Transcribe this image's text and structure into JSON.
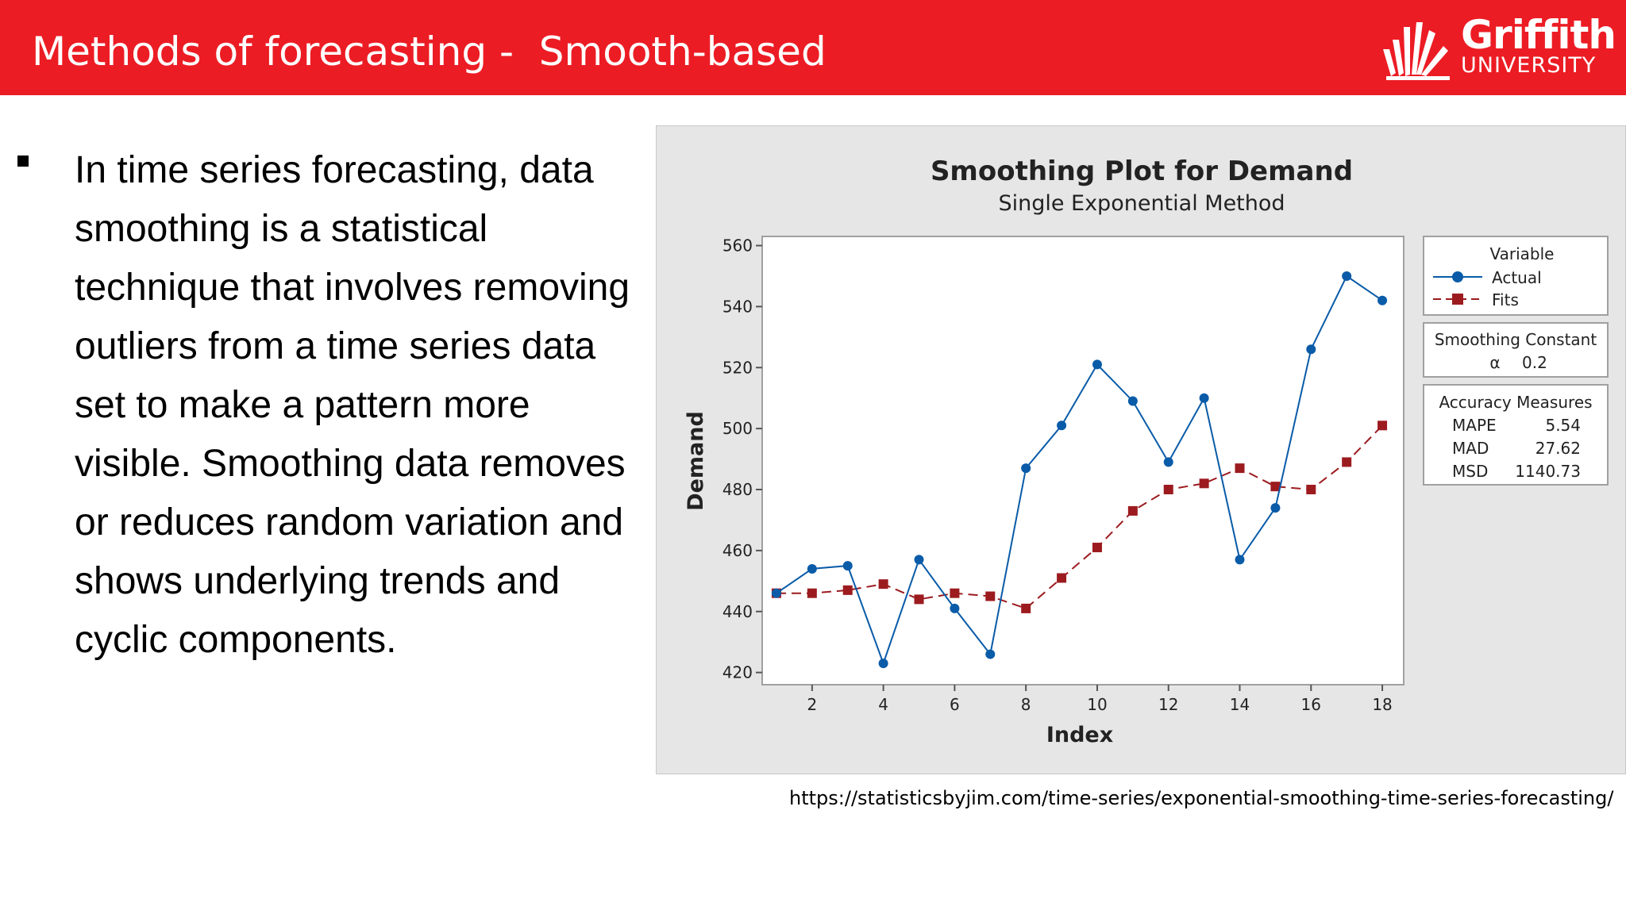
{
  "header": {
    "title": "Methods of forecasting -  Smooth-based",
    "logo_name": "Griffith",
    "logo_sub": "UNIVERSITY"
  },
  "content": {
    "bullet": "In time series forecasting, data smoothing is a statistical technique that involves removing outliers from a time series data set to make a pattern more visible. Smoothing data removes or reduces random variation and shows underlying trends and cyclic components."
  },
  "source_url": "https://statisticsbyjim.com/time-series/exponential-smoothing-time-series-forecasting/",
  "colors": {
    "header_bg": "#ec1c24",
    "actual": "#0a5ba8",
    "fits": "#9c1b1f",
    "panel_bg": "#e6e6e6"
  },
  "chart_data": {
    "type": "line",
    "title": "Smoothing Plot for Demand",
    "subtitle": "Single Exponential Method",
    "xlabel": "Index",
    "ylabel": "Demand",
    "xlim": [
      0.6,
      18.6
    ],
    "ylim": [
      416,
      563
    ],
    "x_ticks": [
      2,
      4,
      6,
      8,
      10,
      12,
      14,
      16,
      18
    ],
    "y_ticks": [
      420,
      440,
      460,
      480,
      500,
      520,
      540,
      560
    ],
    "x": [
      1,
      2,
      3,
      4,
      5,
      6,
      7,
      8,
      9,
      10,
      11,
      12,
      13,
      14,
      15,
      16,
      17,
      18
    ],
    "series": [
      {
        "name": "Actual",
        "values": [
          446,
          454,
          455,
          423,
          457,
          441,
          426,
          487,
          501,
          521,
          509,
          489,
          510,
          457,
          474,
          526,
          550,
          542
        ],
        "style": "solid",
        "marker": "circle",
        "color": "#0a5ba8"
      },
      {
        "name": "Fits",
        "values": [
          446,
          446,
          447,
          449,
          444,
          446,
          445,
          441,
          451,
          461,
          473,
          480,
          482,
          487,
          481,
          480,
          489,
          501
        ],
        "style": "dashed",
        "marker": "square",
        "color": "#9c1b1f"
      }
    ],
    "legend": {
      "title": "Variable",
      "position": "right"
    },
    "smoothing_constant": {
      "title": "Smoothing Constant",
      "symbol": "α",
      "value": "0.2"
    },
    "accuracy_measures": {
      "title": "Accuracy Measures",
      "rows": [
        {
          "label": "MAPE",
          "value": "5.54"
        },
        {
          "label": "MAD",
          "value": "27.62"
        },
        {
          "label": "MSD",
          "value": "1140.73"
        }
      ]
    },
    "grid": false
  }
}
